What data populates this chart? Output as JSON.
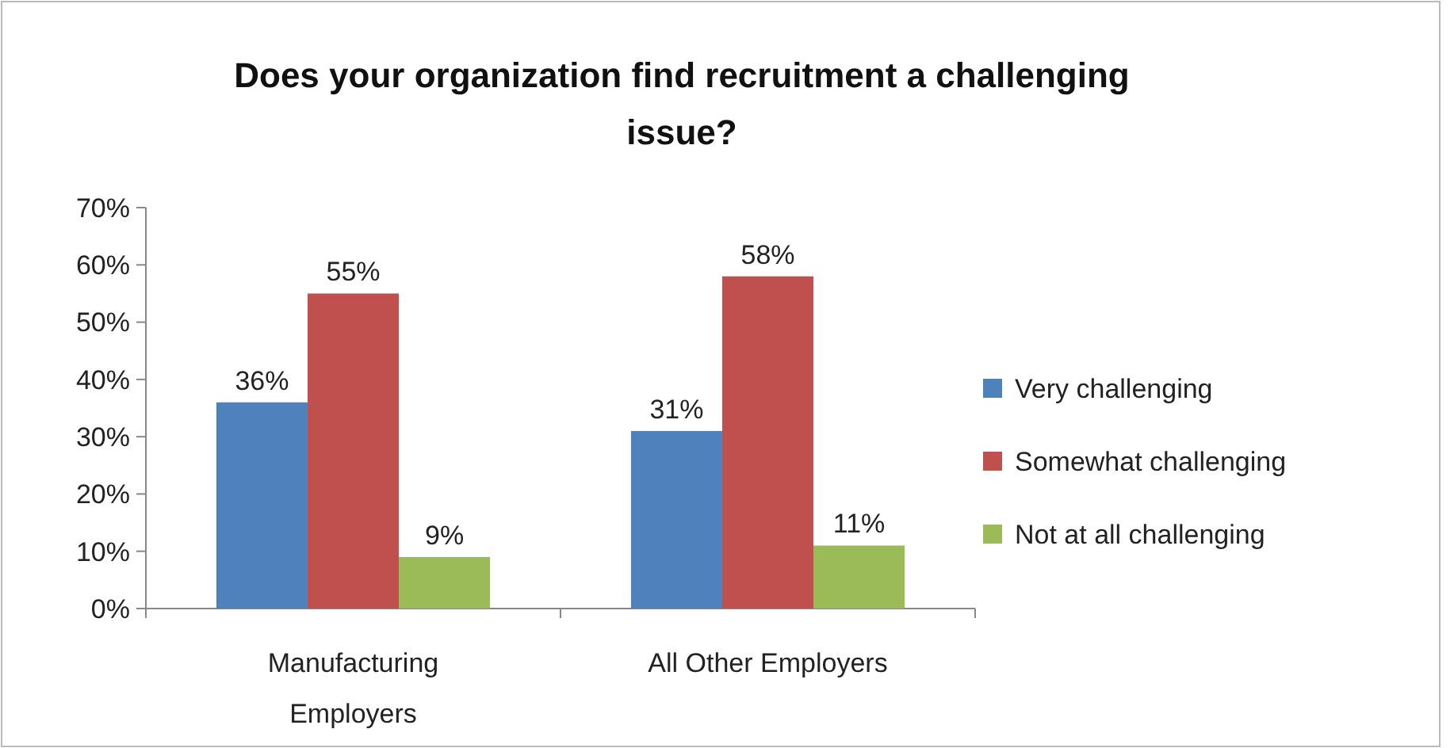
{
  "chart_data": {
    "type": "bar",
    "title": "Does your organization find recruitment a challenging issue?",
    "categories": [
      "Manufacturing Employers",
      "All Other Employers"
    ],
    "series": [
      {
        "name": "Very challenging",
        "color": "#4f81bd",
        "values": [
          36,
          31
        ],
        "value_labels": [
          "36%",
          "31%"
        ]
      },
      {
        "name": "Somewhat challenging",
        "color": "#c0504d",
        "values": [
          55,
          58
        ],
        "value_labels": [
          "55%",
          "58%"
        ]
      },
      {
        "name": "Not at all challenging",
        "color": "#9bbb59",
        "values": [
          9,
          11
        ],
        "value_labels": [
          "9%",
          "11%"
        ]
      }
    ],
    "ylim": [
      0,
      70
    ],
    "yticks": [
      {
        "value": 0,
        "label": "0%"
      },
      {
        "value": 10,
        "label": "10%"
      },
      {
        "value": 20,
        "label": "20%"
      },
      {
        "value": 30,
        "label": "30%"
      },
      {
        "value": 40,
        "label": "40%"
      },
      {
        "value": 50,
        "label": "50%"
      },
      {
        "value": 60,
        "label": "60%"
      },
      {
        "value": 70,
        "label": "70%"
      }
    ],
    "grid": false,
    "legend": "right"
  }
}
